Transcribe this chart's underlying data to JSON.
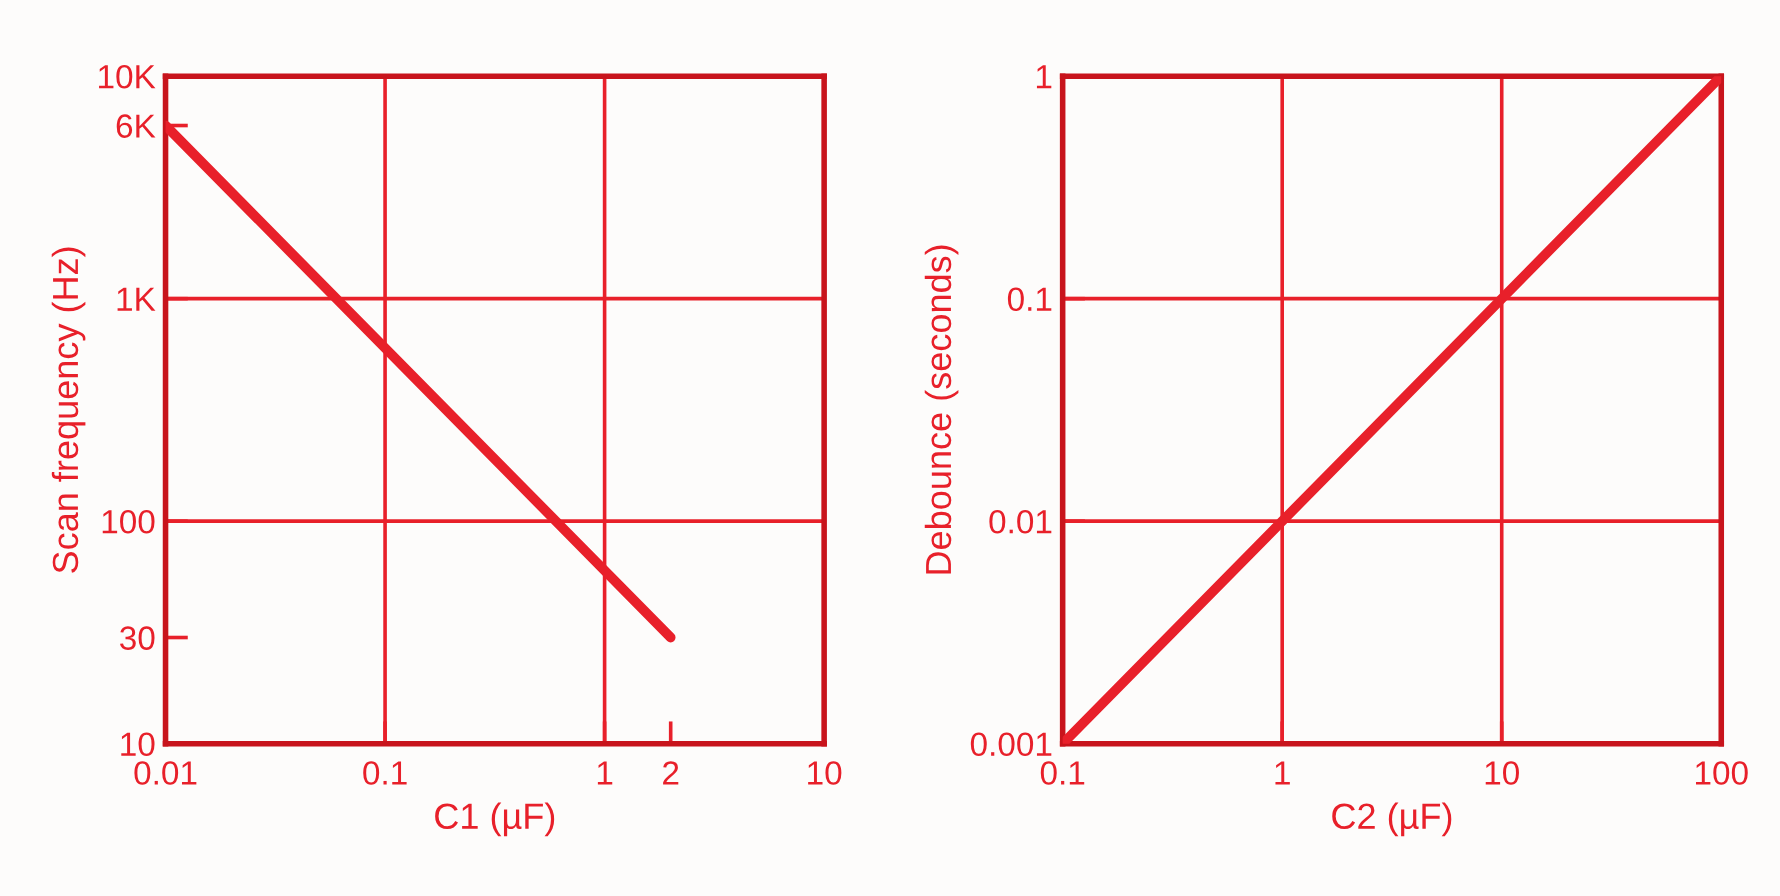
{
  "chart_data": [
    {
      "type": "line",
      "xlabel": "C1 (µF)",
      "ylabel": "Scan frequency (Hz)",
      "log": "xy",
      "grid": true,
      "marker": "none",
      "line_style": "solid",
      "xlim": [
        0.01,
        10
      ],
      "ylim": [
        10,
        10000
      ],
      "xticks": [
        0.01,
        0.1,
        1,
        2,
        10
      ],
      "yticks": [
        10,
        30,
        100,
        {
          "value": 1000,
          "label": "1K"
        },
        {
          "value": 6000,
          "label": "6K"
        },
        {
          "value": 10000,
          "label": "10K"
        }
      ],
      "series": [
        {
          "color": "#e8202a",
          "x": [
            0.01,
            2
          ],
          "values": [
            6000,
            30
          ]
        }
      ]
    },
    {
      "type": "line",
      "xlabel": "C2 (µF)",
      "ylabel": "Debounce (seconds)",
      "log": "xy",
      "grid": true,
      "marker": "none",
      "line_style": "solid",
      "xlim": [
        0.1,
        100
      ],
      "ylim": [
        0.001,
        1
      ],
      "xticks": [
        0.1,
        1,
        10,
        100
      ],
      "yticks": [
        0.001,
        0.01,
        0.1,
        1
      ],
      "series": [
        {
          "color": "#e8202a",
          "x": [
            0.1,
            100
          ],
          "values": [
            0.001,
            1
          ]
        }
      ]
    }
  ]
}
